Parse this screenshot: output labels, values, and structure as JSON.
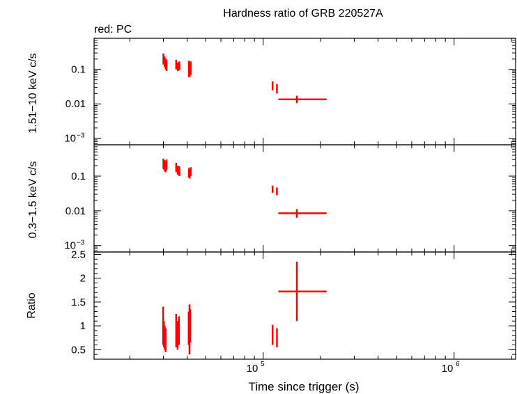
{
  "chart_data": {
    "type": "scatter",
    "title": "Hardness ratio of GRB 220527A",
    "legend_text": "red: PC",
    "xlabel": "Time since trigger (s)",
    "xscale": "log",
    "xlim": [
      13000,
      2100000
    ],
    "x_tick_labels": [
      {
        "value": 100000,
        "base": "10",
        "exp": "5"
      },
      {
        "value": 1000000,
        "base": "10",
        "exp": "6"
      }
    ],
    "series_color": "#ff0000",
    "panels": [
      {
        "id": "hard",
        "ylabel": "1.51−10 keV c/s",
        "yscale": "log",
        "ylim": [
          0.00065,
          0.8
        ],
        "y_ticks": [
          {
            "value": 0.1,
            "label": "0.1"
          },
          {
            "value": 0.01,
            "label": "0.01"
          },
          {
            "value": 0.001,
            "label": "10",
            "exp": "−3"
          }
        ],
        "points": [
          {
            "x": 30000,
            "y": 0.21,
            "ylo": 0.14,
            "yhi": 0.29,
            "xlo": 29800,
            "xhi": 30200
          },
          {
            "x": 30400,
            "y": 0.17,
            "ylo": 0.12,
            "yhi": 0.24,
            "xlo": 30200,
            "xhi": 30600
          },
          {
            "x": 30800,
            "y": 0.15,
            "ylo": 0.1,
            "yhi": 0.21,
            "xlo": 30600,
            "xhi": 31000
          },
          {
            "x": 31200,
            "y": 0.13,
            "ylo": 0.09,
            "yhi": 0.19,
            "xlo": 31000,
            "xhi": 31400
          },
          {
            "x": 35000,
            "y": 0.14,
            "ylo": 0.1,
            "yhi": 0.19,
            "xlo": 34700,
            "xhi": 35300
          },
          {
            "x": 35700,
            "y": 0.12,
            "ylo": 0.09,
            "yhi": 0.16,
            "xlo": 35400,
            "xhi": 36000
          },
          {
            "x": 36400,
            "y": 0.13,
            "ylo": 0.095,
            "yhi": 0.17,
            "xlo": 36100,
            "xhi": 36700
          },
          {
            "x": 40800,
            "y": 0.12,
            "ylo": 0.06,
            "yhi": 0.18,
            "xlo": 40600,
            "xhi": 41000
          },
          {
            "x": 41200,
            "y": 0.1,
            "ylo": 0.06,
            "yhi": 0.15,
            "xlo": 41000,
            "xhi": 41400
          },
          {
            "x": 41700,
            "y": 0.11,
            "ylo": 0.07,
            "yhi": 0.17,
            "xlo": 41500,
            "xhi": 41900
          },
          {
            "x": 112000,
            "y": 0.033,
            "ylo": 0.025,
            "yhi": 0.045,
            "xlo": 111000,
            "xhi": 113000
          },
          {
            "x": 118000,
            "y": 0.028,
            "ylo": 0.02,
            "yhi": 0.038,
            "xlo": 117000,
            "xhi": 119000
          },
          {
            "x": 150000,
            "y": 0.0135,
            "ylo": 0.0105,
            "yhi": 0.0172,
            "xlo": 120000,
            "xhi": 215000
          }
        ]
      },
      {
        "id": "soft",
        "ylabel": "0.3−1.5 keV c/s",
        "yscale": "log",
        "ylim": [
          0.00065,
          0.8
        ],
        "y_ticks": [
          {
            "value": 0.1,
            "label": "0.1"
          },
          {
            "value": 0.01,
            "label": "0.01"
          },
          {
            "value": 0.001,
            "label": "10",
            "exp": "−3"
          }
        ],
        "points": [
          {
            "x": 30000,
            "y": 0.24,
            "ylo": 0.16,
            "yhi": 0.32,
            "xlo": 29800,
            "xhi": 30200
          },
          {
            "x": 30400,
            "y": 0.21,
            "ylo": 0.14,
            "yhi": 0.29,
            "xlo": 30200,
            "xhi": 30600
          },
          {
            "x": 30800,
            "y": 0.19,
            "ylo": 0.13,
            "yhi": 0.27,
            "xlo": 30600,
            "xhi": 31000
          },
          {
            "x": 31200,
            "y": 0.22,
            "ylo": 0.15,
            "yhi": 0.3,
            "xlo": 31000,
            "xhi": 31400
          },
          {
            "x": 35000,
            "y": 0.18,
            "ylo": 0.13,
            "yhi": 0.24,
            "xlo": 34700,
            "xhi": 35300
          },
          {
            "x": 35700,
            "y": 0.15,
            "ylo": 0.11,
            "yhi": 0.2,
            "xlo": 35400,
            "xhi": 36000
          },
          {
            "x": 36400,
            "y": 0.14,
            "ylo": 0.1,
            "yhi": 0.19,
            "xlo": 36100,
            "xhi": 36700
          },
          {
            "x": 40800,
            "y": 0.13,
            "ylo": 0.09,
            "yhi": 0.17,
            "xlo": 40600,
            "xhi": 41000
          },
          {
            "x": 41200,
            "y": 0.12,
            "ylo": 0.085,
            "yhi": 0.16,
            "xlo": 41000,
            "xhi": 41400
          },
          {
            "x": 41700,
            "y": 0.14,
            "ylo": 0.1,
            "yhi": 0.18,
            "xlo": 41500,
            "xhi": 41900
          },
          {
            "x": 112000,
            "y": 0.042,
            "ylo": 0.033,
            "yhi": 0.053,
            "xlo": 111000,
            "xhi": 113000
          },
          {
            "x": 118000,
            "y": 0.037,
            "ylo": 0.028,
            "yhi": 0.047,
            "xlo": 117000,
            "xhi": 119000
          },
          {
            "x": 150000,
            "y": 0.0085,
            "ylo": 0.0063,
            "yhi": 0.0112,
            "xlo": 120000,
            "xhi": 215000
          }
        ]
      },
      {
        "id": "ratio",
        "ylabel": "Ratio",
        "yscale": "linear",
        "ylim": [
          0.3,
          2.55
        ],
        "y_ticks": [
          {
            "value": 0.5,
            "label": "0.5"
          },
          {
            "value": 1,
            "label": "1"
          },
          {
            "value": 1.5,
            "label": "1.5"
          },
          {
            "value": 2,
            "label": "2"
          },
          {
            "value": 2.5,
            "label": "2.5"
          }
        ],
        "minor_step": 0.1,
        "points": [
          {
            "x": 29900,
            "y": 0.95,
            "ylo": 0.6,
            "yhi": 1.4,
            "xlo": 29800,
            "xhi": 30000
          },
          {
            "x": 30200,
            "y": 0.8,
            "ylo": 0.55,
            "yhi": 1.1,
            "xlo": 30100,
            "xhi": 30300
          },
          {
            "x": 30500,
            "y": 0.75,
            "ylo": 0.5,
            "yhi": 1.0,
            "xlo": 30400,
            "xhi": 30600
          },
          {
            "x": 30800,
            "y": 0.7,
            "ylo": 0.45,
            "yhi": 0.95,
            "xlo": 30700,
            "xhi": 30900
          },
          {
            "x": 35000,
            "y": 0.85,
            "ylo": 0.55,
            "yhi": 1.25,
            "xlo": 34800,
            "xhi": 35200
          },
          {
            "x": 35600,
            "y": 0.8,
            "ylo": 0.5,
            "yhi": 1.1,
            "xlo": 35400,
            "xhi": 35800
          },
          {
            "x": 36200,
            "y": 0.9,
            "ylo": 0.6,
            "yhi": 1.2,
            "xlo": 36000,
            "xhi": 36400
          },
          {
            "x": 40700,
            "y": 0.9,
            "ylo": 0.6,
            "yhi": 1.3,
            "xlo": 40600,
            "xhi": 40800
          },
          {
            "x": 41100,
            "y": 0.85,
            "ylo": 0.4,
            "yhi": 1.45,
            "xlo": 41000,
            "xhi": 41200
          },
          {
            "x": 41500,
            "y": 1.0,
            "ylo": 0.65,
            "yhi": 1.35,
            "xlo": 41400,
            "xhi": 41600
          },
          {
            "x": 112000,
            "y": 0.8,
            "ylo": 0.6,
            "yhi": 1.02,
            "xlo": 111000,
            "xhi": 113000
          },
          {
            "x": 118000,
            "y": 0.75,
            "ylo": 0.55,
            "yhi": 0.95,
            "xlo": 117000,
            "xhi": 119000
          },
          {
            "x": 150000,
            "y": 1.72,
            "ylo": 1.1,
            "yhi": 2.35,
            "xlo": 120000,
            "xhi": 215000
          }
        ]
      }
    ]
  }
}
